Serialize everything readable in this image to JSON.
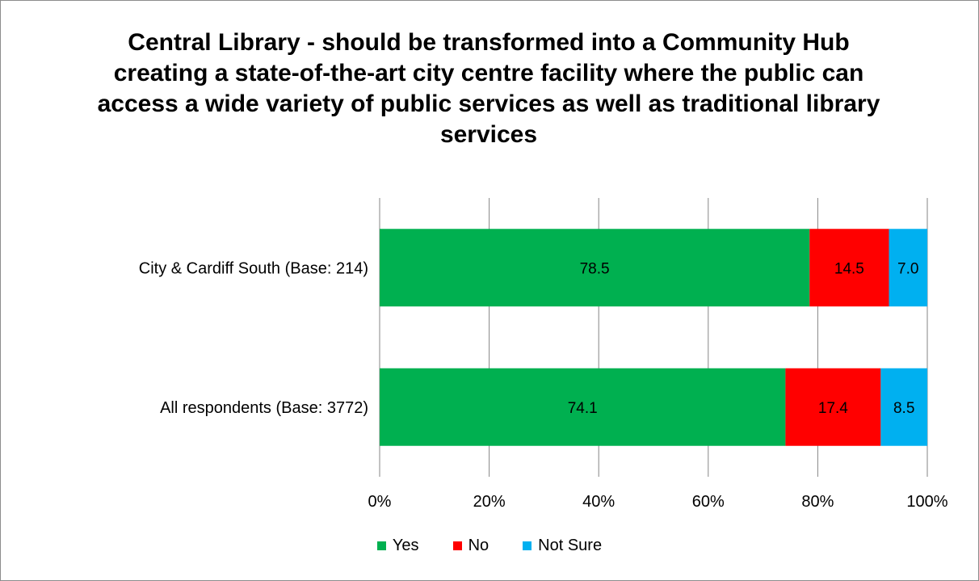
{
  "chart_data": {
    "type": "bar",
    "orientation": "horizontal",
    "stacked": true,
    "title": "Central Library - should be transformed into a Community Hub creating a state-of-the-art city centre facility where the public can access a wide variety of public services as well as traditional library services",
    "categories": [
      "City & Cardiff South (Base: 214)",
      "All respondents (Base: 3772)"
    ],
    "series": [
      {
        "name": "Yes",
        "color": "#00b050",
        "values": [
          78.5,
          74.1
        ]
      },
      {
        "name": "No",
        "color": "#ff0000",
        "values": [
          14.5,
          17.4
        ]
      },
      {
        "name": "Not Sure",
        "color": "#00b0f0",
        "values": [
          7.0,
          8.5
        ]
      }
    ],
    "data_labels": [
      [
        "78.5",
        "14.5",
        "7.0"
      ],
      [
        "74.1",
        "17.4",
        "8.5"
      ]
    ],
    "x_ticks": [
      "0%",
      "20%",
      "40%",
      "60%",
      "80%",
      "100%"
    ],
    "xlim": [
      0,
      100
    ],
    "grid": true,
    "legend_position": "bottom"
  }
}
